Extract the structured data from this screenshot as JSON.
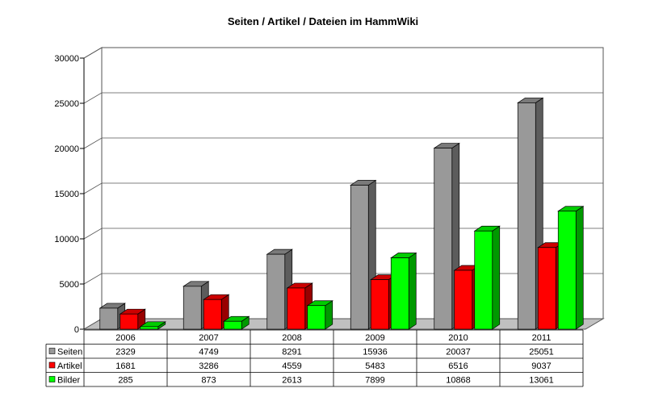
{
  "chart_data": {
    "type": "bar",
    "title": "Seiten / Artikel / Dateien im HammWiki",
    "categories": [
      "2006",
      "2007",
      "2008",
      "2009",
      "2010",
      "2011"
    ],
    "series": [
      {
        "name": "Seiten",
        "color": "#999999",
        "values": [
          2329,
          4749,
          8291,
          15936,
          20037,
          25051
        ]
      },
      {
        "name": "Artikel",
        "color": "#ff0000",
        "values": [
          1681,
          3286,
          4559,
          5483,
          6516,
          9037
        ]
      },
      {
        "name": "Bilder",
        "color": "#00ff00",
        "values": [
          285,
          873,
          2613,
          7899,
          10868,
          13061
        ]
      }
    ],
    "ylim": [
      0,
      30000
    ],
    "yticks": [
      "0",
      "5000",
      "10000",
      "15000",
      "20000",
      "25000",
      "30000"
    ],
    "grid": true,
    "data_table": true
  }
}
